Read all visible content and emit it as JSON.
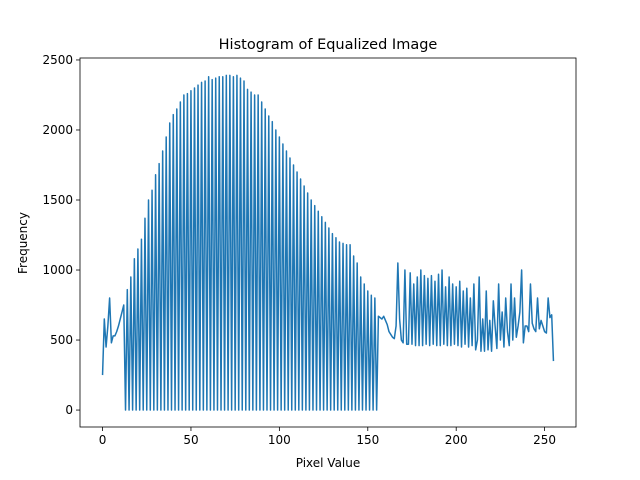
{
  "chart_data": {
    "type": "line",
    "title": "Histogram of Equalized Image",
    "xlabel": "Pixel Value",
    "ylabel": "Frequency",
    "x": [
      0,
      1,
      2,
      3,
      4,
      5,
      6,
      7,
      8,
      9,
      10,
      11,
      12,
      13,
      14,
      15,
      16,
      17,
      18,
      19,
      20,
      21,
      22,
      23,
      24,
      25,
      26,
      27,
      28,
      29,
      30,
      31,
      32,
      33,
      34,
      35,
      36,
      37,
      38,
      39,
      40,
      41,
      42,
      43,
      44,
      45,
      46,
      47,
      48,
      49,
      50,
      51,
      52,
      53,
      54,
      55,
      56,
      57,
      58,
      59,
      60,
      61,
      62,
      63,
      64,
      65,
      66,
      67,
      68,
      69,
      70,
      71,
      72,
      73,
      74,
      75,
      76,
      77,
      78,
      79,
      80,
      81,
      82,
      83,
      84,
      85,
      86,
      87,
      88,
      89,
      90,
      91,
      92,
      93,
      94,
      95,
      96,
      97,
      98,
      99,
      100,
      101,
      102,
      103,
      104,
      105,
      106,
      107,
      108,
      109,
      110,
      111,
      112,
      113,
      114,
      115,
      116,
      117,
      118,
      119,
      120,
      121,
      122,
      123,
      124,
      125,
      126,
      127,
      128,
      129,
      130,
      131,
      132,
      133,
      134,
      135,
      136,
      137,
      138,
      139,
      140,
      141,
      142,
      143,
      144,
      145,
      146,
      147,
      148,
      149,
      150,
      151,
      152,
      153,
      154,
      155,
      156,
      157,
      158,
      159,
      160,
      161,
      162,
      163,
      164,
      165,
      166,
      167,
      168,
      169,
      170,
      171,
      172,
      173,
      174,
      175,
      176,
      177,
      178,
      179,
      180,
      181,
      182,
      183,
      184,
      185,
      186,
      187,
      188,
      189,
      190,
      191,
      192,
      193,
      194,
      195,
      196,
      197,
      198,
      199,
      200,
      201,
      202,
      203,
      204,
      205,
      206,
      207,
      208,
      209,
      210,
      211,
      212,
      213,
      214,
      215,
      216,
      217,
      218,
      219,
      220,
      221,
      222,
      223,
      224,
      225,
      226,
      227,
      228,
      229,
      230,
      231,
      232,
      233,
      234,
      235,
      236,
      237,
      238,
      239,
      240,
      241,
      242,
      243,
      244,
      245,
      246,
      247,
      248,
      249,
      250,
      251,
      252,
      253,
      254,
      255
    ],
    "series": [
      {
        "name": "Frequency",
        "color": "#1f77b4",
        "values": [
          250,
          650,
          450,
          600,
          800,
          480,
          530,
          530,
          560,
          600,
          650,
          700,
          750,
          0,
          860,
          0,
          950,
          0,
          1080,
          0,
          1150,
          0,
          1220,
          0,
          1370,
          0,
          1500,
          0,
          1570,
          0,
          1680,
          0,
          1760,
          0,
          1850,
          0,
          1950,
          0,
          2050,
          0,
          2110,
          0,
          2150,
          0,
          2200,
          0,
          2250,
          0,
          2260,
          0,
          2280,
          0,
          2300,
          0,
          2320,
          0,
          2340,
          0,
          2350,
          0,
          2380,
          0,
          2360,
          0,
          2370,
          0,
          2380,
          0,
          2380,
          0,
          2390,
          0,
          2390,
          0,
          2380,
          0,
          2390,
          0,
          2370,
          0,
          2350,
          0,
          2290,
          0,
          2270,
          0,
          2250,
          0,
          2250,
          0,
          2200,
          0,
          2150,
          0,
          2100,
          0,
          2060,
          0,
          2000,
          0,
          1950,
          0,
          1900,
          0,
          1850,
          0,
          1800,
          0,
          1750,
          0,
          1700,
          0,
          1650,
          0,
          1600,
          0,
          1550,
          0,
          1500,
          0,
          1460,
          0,
          1420,
          0,
          1380,
          0,
          1340,
          0,
          1300,
          0,
          1260,
          0,
          1230,
          0,
          1200,
          0,
          1190,
          0,
          1180,
          0,
          1180,
          0,
          1100,
          0,
          1050,
          0,
          950,
          0,
          900,
          0,
          850,
          0,
          820,
          0,
          800,
          0,
          670,
          660,
          650,
          670,
          640,
          610,
          560,
          540,
          520,
          510,
          600,
          1050,
          650,
          500,
          480,
          1000,
          470,
          470,
          980,
          470,
          900,
          460,
          950,
          460,
          1000,
          460,
          960,
          470,
          940,
          460,
          960,
          470,
          920,
          460,
          970,
          460,
          1000,
          470,
          880,
          460,
          950,
          460,
          900,
          470,
          880,
          460,
          920,
          450,
          850,
          470,
          870,
          450,
          800,
          460,
          900,
          430,
          500,
          950,
          420,
          650,
          420,
          850,
          430,
          640,
          420,
          780,
          600,
          440,
          900,
          500,
          700,
          450,
          800,
          560,
          460,
          900,
          500,
          800,
          520,
          600,
          700,
          1000,
          480,
          600,
          600,
          560,
          900,
          620,
          580,
          560,
          800,
          580,
          640,
          600,
          560,
          550,
          800,
          660,
          680,
          350
        ]
      }
    ],
    "xlim": [
      -12.75,
      267.75
    ],
    "ylim": [
      -121,
      2514
    ],
    "xticks": [
      0,
      50,
      100,
      150,
      200,
      250
    ],
    "yticks": [
      0,
      500,
      1000,
      1500,
      2000,
      2500
    ]
  }
}
